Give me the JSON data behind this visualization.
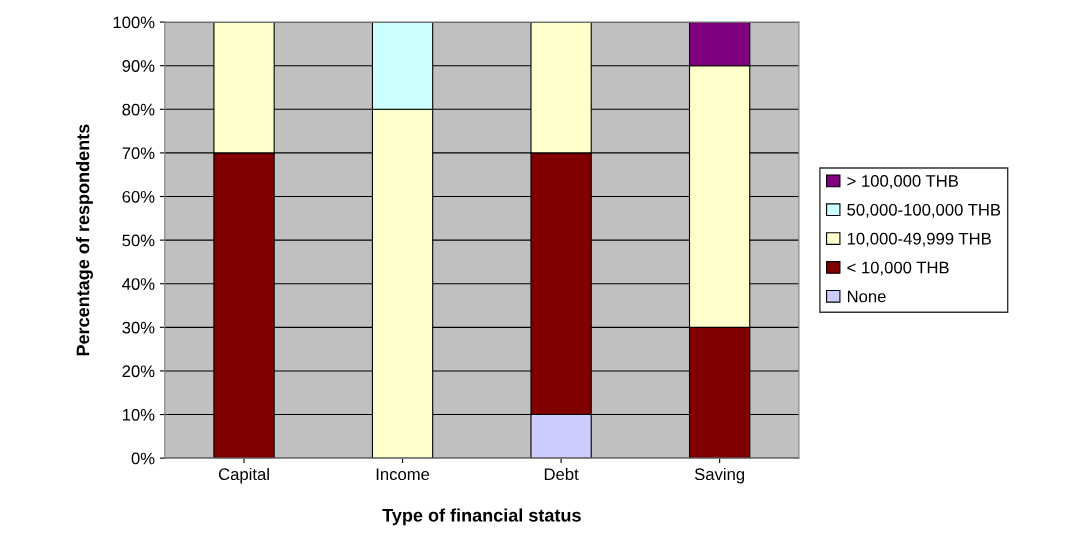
{
  "chart_data": {
    "type": "bar",
    "stacked": true,
    "xlabel": "Type of financial status",
    "ylabel": "Percentage of respondents",
    "categories": [
      "Capital",
      "Income",
      "Debt",
      "Saving"
    ],
    "series": [
      {
        "name": "None",
        "color": "#ccccff",
        "values": [
          0,
          0,
          10,
          0
        ]
      },
      {
        "name": "< 10,000 THB",
        "color": "#800000",
        "values": [
          70,
          0,
          60,
          30
        ]
      },
      {
        "name": "10,000-49,999 THB",
        "color": "#ffffcc",
        "values": [
          30,
          80,
          30,
          60
        ]
      },
      {
        "name": "50,000-100,000 THB",
        "color": "#ccffff",
        "values": [
          0,
          20,
          0,
          0
        ]
      },
      {
        "name": "> 100,000 THB",
        "color": "#800080",
        "values": [
          0,
          0,
          0,
          10
        ]
      }
    ],
    "ylim": [
      0,
      100
    ],
    "yticks": [
      {
        "value": 0,
        "label": "0%"
      },
      {
        "value": 10,
        "label": "10%"
      },
      {
        "value": 20,
        "label": "20%"
      },
      {
        "value": 30,
        "label": "30%"
      },
      {
        "value": 40,
        "label": "40%"
      },
      {
        "value": 50,
        "label": "50%"
      },
      {
        "value": 60,
        "label": "60%"
      },
      {
        "value": 70,
        "label": "70%"
      },
      {
        "value": 80,
        "label": "80%"
      },
      {
        "value": 90,
        "label": "90%"
      },
      {
        "value": 100,
        "label": "100%"
      }
    ],
    "grid": "y",
    "legend": "right"
  }
}
